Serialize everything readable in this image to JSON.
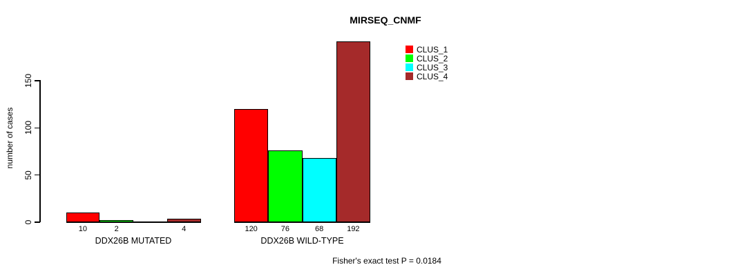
{
  "chart_data": {
    "type": "bar",
    "title": "MIRSEQ_CNMF",
    "ylabel": "number of cases",
    "xlabel": "",
    "annotation": "Fisher's exact test P = 0.0184",
    "categories": [
      "DDX26B MUTATED",
      "DDX26B WILD-TYPE"
    ],
    "series": [
      {
        "name": "CLUS_1",
        "color": "#FF0000",
        "values": [
          10,
          120
        ]
      },
      {
        "name": "CLUS_2",
        "color": "#00FF00",
        "values": [
          2,
          76
        ]
      },
      {
        "name": "CLUS_3",
        "color": "#00FFFF",
        "values": [
          0,
          68
        ]
      },
      {
        "name": "CLUS_4",
        "color": "#A52A2A",
        "values": [
          4,
          192
        ]
      }
    ],
    "bar_value_labels": [
      [
        "10",
        "2",
        "",
        "4"
      ],
      [
        "120",
        "76",
        "68",
        "192"
      ]
    ],
    "y_ticks": [
      0,
      50,
      100,
      150
    ],
    "ylim": [
      0,
      150
    ],
    "grid": false,
    "legend_position": "top-right",
    "axis_color": "#000000",
    "background_color": "#FFFFFF"
  }
}
